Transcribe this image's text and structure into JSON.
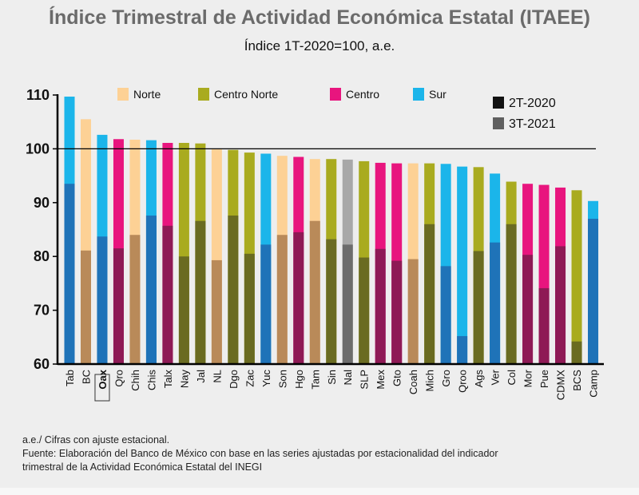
{
  "chart_data": {
    "type": "bar",
    "title": "Índice Trimestral de Actividad Económica Estatal (ITAEE)",
    "subtitle": "Índice 1T-2020=100, a.e.",
    "ylim": [
      60,
      112
    ],
    "yticks": [
      60,
      70,
      80,
      90,
      100,
      110
    ],
    "reference_line": 100,
    "highlighted_category": "Oax",
    "categories": [
      "Tab",
      "BC",
      "Oax",
      "Qro",
      "Chih",
      "Chis",
      "Talx",
      "Nay",
      "Jal",
      "NL",
      "Dgo",
      "Zac",
      "Yuc",
      "Son",
      "Hgo",
      "Tam",
      "Sin",
      "Nal",
      "SLP",
      "Mex",
      "Gto",
      "Coah",
      "Mich",
      "Gro",
      "Qroo",
      "Ags",
      "Ver",
      "Col",
      "Mor",
      "Pue",
      "CDMX",
      "BCS",
      "Camp"
    ],
    "region": [
      "Sur",
      "Norte",
      "Sur",
      "Centro",
      "Norte",
      "Sur",
      "Centro",
      "Centro Norte",
      "Centro Norte",
      "Norte",
      "Centro Norte",
      "Centro Norte",
      "Sur",
      "Norte",
      "Centro",
      "Norte",
      "Centro Norte",
      "Nacional",
      "Centro Norte",
      "Centro",
      "Centro",
      "Norte",
      "Centro Norte",
      "Sur",
      "Sur",
      "Centro Norte",
      "Sur",
      "Centro Norte",
      "Centro",
      "Centro",
      "Centro",
      "Centro Norte",
      "Sur"
    ],
    "series": [
      {
        "name": "2T-2020",
        "values": [
          93.5,
          81.1,
          83.7,
          81.5,
          84.0,
          87.6,
          85.7,
          80.0,
          86.6,
          79.3,
          87.6,
          80.5,
          82.2,
          84.0,
          84.5,
          86.6,
          83.2,
          82.2,
          79.8,
          81.4,
          79.2,
          79.5,
          86.0,
          78.2,
          65.2,
          81.0,
          82.6,
          86.0,
          80.3,
          74.1,
          81.9,
          64.2,
          87.0
        ]
      },
      {
        "name": "3T-2021",
        "values": [
          109.7,
          105.5,
          102.6,
          101.8,
          101.7,
          101.6,
          101.1,
          101.1,
          101.0,
          99.9,
          99.8,
          99.3,
          99.1,
          98.7,
          98.5,
          98.1,
          98.1,
          98.0,
          97.7,
          97.4,
          97.3,
          97.3,
          97.3,
          97.2,
          96.7,
          96.6,
          95.4,
          93.9,
          93.5,
          93.3,
          92.8,
          92.3,
          90.3
        ]
      }
    ],
    "legend": {
      "region_items": [
        "Norte",
        "Centro Norte",
        "Centro",
        "Sur"
      ],
      "series_items": [
        "2T-2020",
        "3T-2021"
      ],
      "placement": "top"
    },
    "colors": {
      "Norte": {
        "light": "#fdd195",
        "dark": "#b98a59"
      },
      "Centro Norte": {
        "light": "#a9ab1f",
        "dark": "#6a6b21"
      },
      "Centro": {
        "light": "#e8157e",
        "dark": "#8e1a55"
      },
      "Sur": {
        "light": "#1bb5ea",
        "dark": "#1f73b8"
      },
      "Nacional": {
        "light": "#a8a8a8",
        "dark": "#6c6c6c"
      },
      "legend_2T": "#111111",
      "legend_3T": "#5f5f5f"
    }
  },
  "notes": {
    "line1": "a.e./ Cifras con ajuste estacional.",
    "line2": "Fuente: Elaboración del Banco de México con base en las series ajustadas por estacionalidad del indicador",
    "line3": "trimestral de la Actividad Económica Estatal del INEGI"
  }
}
